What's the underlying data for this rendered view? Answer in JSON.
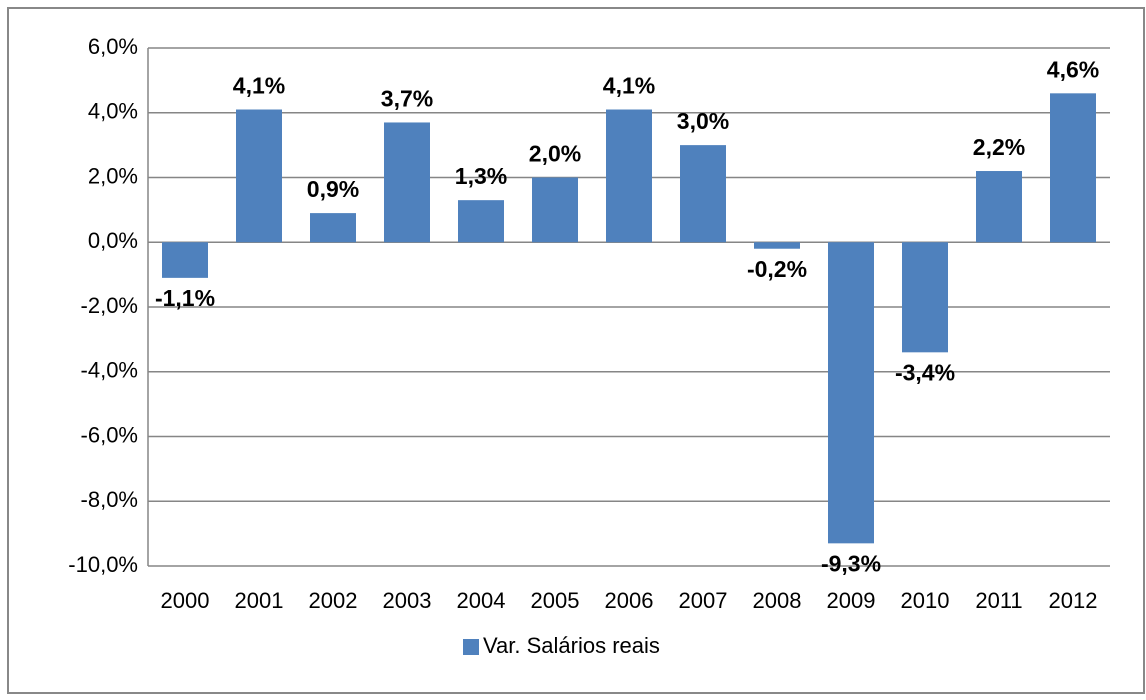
{
  "chart_data": {
    "type": "bar",
    "categories": [
      "2000",
      "2001",
      "2002",
      "2003",
      "2004",
      "2005",
      "2006",
      "2007",
      "2008",
      "2009",
      "2010",
      "2011",
      "2012"
    ],
    "series": [
      {
        "name": "Var. Salários reais",
        "color": "#4f81bd",
        "values": [
          -1.1,
          4.1,
          0.9,
          3.7,
          1.3,
          2.0,
          4.1,
          3.0,
          -0.2,
          -9.3,
          -3.4,
          2.2,
          4.6
        ],
        "value_labels": [
          "-1,1%",
          "4,1%",
          "0,9%",
          "3,7%",
          "1,3%",
          "2,0%",
          "4,1%",
          "3,0%",
          "-0,2%",
          "-9,3%",
          "-3,4%",
          "2,2%",
          "4,6%"
        ]
      }
    ],
    "ylim": [
      -10,
      6
    ],
    "yticks": [
      {
        "value": -10,
        "label": "-10,0%"
      },
      {
        "value": -8,
        "label": "-8,0%"
      },
      {
        "value": -6,
        "label": "-6,0%"
      },
      {
        "value": -4,
        "label": "-4,0%"
      },
      {
        "value": -2,
        "label": "-2,0%"
      },
      {
        "value": 0,
        "label": "0,0%"
      },
      {
        "value": 2,
        "label": "2,0%"
      },
      {
        "value": 4,
        "label": "4,0%"
      },
      {
        "value": 6,
        "label": "6,0%"
      }
    ],
    "grid": true,
    "legend": "bottom"
  }
}
